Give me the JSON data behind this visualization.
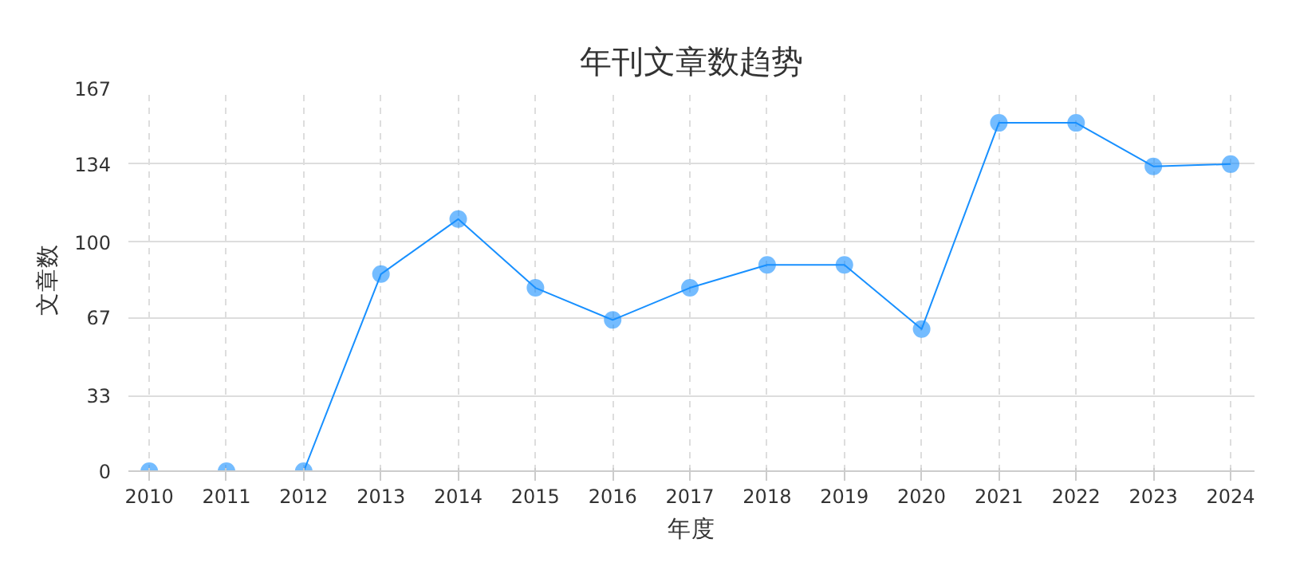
{
  "chart_data": {
    "type": "line",
    "title": "年刊文章数趋势",
    "xlabel": "年度",
    "ylabel": "文章数",
    "categories": [
      "2010",
      "2011",
      "2012",
      "2013",
      "2014",
      "2015",
      "2016",
      "2017",
      "2018",
      "2019",
      "2020",
      "2021",
      "2022",
      "2023",
      "2024"
    ],
    "series": [
      {
        "color": "#1890ff",
        "values": [
          0,
          0,
          0,
          86,
          110,
          80,
          66,
          80,
          90,
          90,
          62,
          152,
          152,
          133,
          134
        ]
      }
    ],
    "ylim": [
      0,
      167
    ],
    "yticks": [
      0,
      33,
      67,
      100,
      134,
      167
    ],
    "grid": true,
    "marker": "circle",
    "line_style": "solid"
  }
}
